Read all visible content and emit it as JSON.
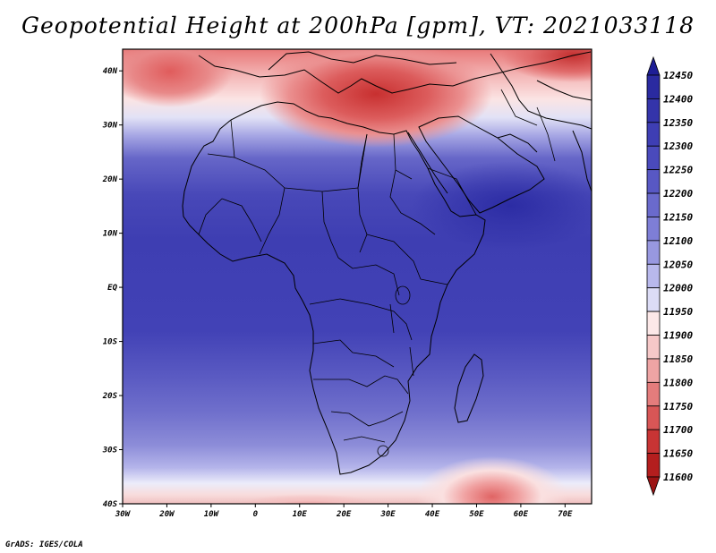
{
  "title": "Geopotential Height at 200hPa [gpm], VT: 2021033118",
  "footer": "GrADS: IGES/COLA",
  "map": {
    "region": "Africa, Mediterranean and Middle East",
    "lon_range": [
      -30,
      76
    ],
    "lat_range": [
      -40,
      44
    ],
    "lat_ticks": [
      {
        "value": 40,
        "label": "40N"
      },
      {
        "value": 30,
        "label": "30N"
      },
      {
        "value": 20,
        "label": "20N"
      },
      {
        "value": 10,
        "label": "10N"
      },
      {
        "value": 0,
        "label": "EQ"
      },
      {
        "value": -10,
        "label": "10S"
      },
      {
        "value": -20,
        "label": "20S"
      },
      {
        "value": -30,
        "label": "30S"
      },
      {
        "value": -40,
        "label": "40S"
      }
    ],
    "lon_ticks": [
      {
        "value": -30,
        "label": "30W"
      },
      {
        "value": -20,
        "label": "20W"
      },
      {
        "value": -10,
        "label": "10W"
      },
      {
        "value": 0,
        "label": "0"
      },
      {
        "value": 10,
        "label": "10E"
      },
      {
        "value": 20,
        "label": "20E"
      },
      {
        "value": 30,
        "label": "30E"
      },
      {
        "value": 40,
        "label": "40E"
      },
      {
        "value": 50,
        "label": "50E"
      },
      {
        "value": 60,
        "label": "60E"
      },
      {
        "value": 70,
        "label": "70E"
      }
    ]
  },
  "colorbar": {
    "levels": [
      "12450",
      "12400",
      "12350",
      "12300",
      "12250",
      "12200",
      "12150",
      "12100",
      "12050",
      "12000",
      "11950",
      "11900",
      "11850",
      "11800",
      "11750",
      "11700",
      "11650",
      "11600"
    ],
    "colors": [
      "#1e1e96",
      "#2a2aa0",
      "#3434aa",
      "#3e3eb4",
      "#4a4abc",
      "#5858c4",
      "#6a6acc",
      "#7e7ed6",
      "#9898e0",
      "#b8b8ec",
      "#dcdcf6",
      "#fce8e8",
      "#f6c8c8",
      "#eea4a4",
      "#e47c7c",
      "#d85656",
      "#c83434",
      "#b41e1e",
      "#9c1414"
    ]
  }
}
